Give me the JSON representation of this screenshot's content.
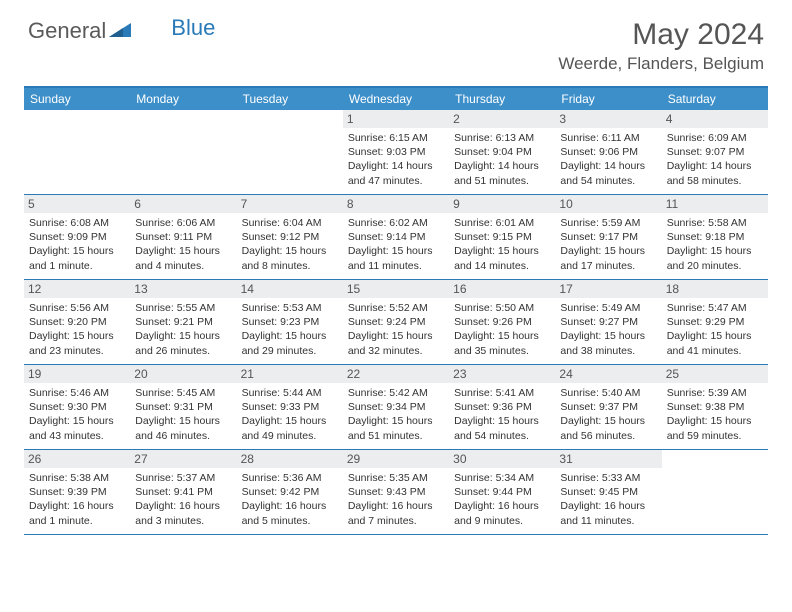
{
  "brand": {
    "part1": "General",
    "part2": "Blue"
  },
  "title": "May 2024",
  "location": "Weerde, Flanders, Belgium",
  "colors": {
    "header_bg": "#3d8fc9",
    "border": "#2a7ab8",
    "daynum_bg": "#ebedef",
    "text": "#333333",
    "title_text": "#555555"
  },
  "day_names": [
    "Sunday",
    "Monday",
    "Tuesday",
    "Wednesday",
    "Thursday",
    "Friday",
    "Saturday"
  ],
  "weeks": [
    [
      {
        "n": "",
        "sr": "",
        "ss": "",
        "dl": ""
      },
      {
        "n": "",
        "sr": "",
        "ss": "",
        "dl": ""
      },
      {
        "n": "",
        "sr": "",
        "ss": "",
        "dl": ""
      },
      {
        "n": "1",
        "sr": "Sunrise: 6:15 AM",
        "ss": "Sunset: 9:03 PM",
        "dl": "Daylight: 14 hours and 47 minutes."
      },
      {
        "n": "2",
        "sr": "Sunrise: 6:13 AM",
        "ss": "Sunset: 9:04 PM",
        "dl": "Daylight: 14 hours and 51 minutes."
      },
      {
        "n": "3",
        "sr": "Sunrise: 6:11 AM",
        "ss": "Sunset: 9:06 PM",
        "dl": "Daylight: 14 hours and 54 minutes."
      },
      {
        "n": "4",
        "sr": "Sunrise: 6:09 AM",
        "ss": "Sunset: 9:07 PM",
        "dl": "Daylight: 14 hours and 58 minutes."
      }
    ],
    [
      {
        "n": "5",
        "sr": "Sunrise: 6:08 AM",
        "ss": "Sunset: 9:09 PM",
        "dl": "Daylight: 15 hours and 1 minute."
      },
      {
        "n": "6",
        "sr": "Sunrise: 6:06 AM",
        "ss": "Sunset: 9:11 PM",
        "dl": "Daylight: 15 hours and 4 minutes."
      },
      {
        "n": "7",
        "sr": "Sunrise: 6:04 AM",
        "ss": "Sunset: 9:12 PM",
        "dl": "Daylight: 15 hours and 8 minutes."
      },
      {
        "n": "8",
        "sr": "Sunrise: 6:02 AM",
        "ss": "Sunset: 9:14 PM",
        "dl": "Daylight: 15 hours and 11 minutes."
      },
      {
        "n": "9",
        "sr": "Sunrise: 6:01 AM",
        "ss": "Sunset: 9:15 PM",
        "dl": "Daylight: 15 hours and 14 minutes."
      },
      {
        "n": "10",
        "sr": "Sunrise: 5:59 AM",
        "ss": "Sunset: 9:17 PM",
        "dl": "Daylight: 15 hours and 17 minutes."
      },
      {
        "n": "11",
        "sr": "Sunrise: 5:58 AM",
        "ss": "Sunset: 9:18 PM",
        "dl": "Daylight: 15 hours and 20 minutes."
      }
    ],
    [
      {
        "n": "12",
        "sr": "Sunrise: 5:56 AM",
        "ss": "Sunset: 9:20 PM",
        "dl": "Daylight: 15 hours and 23 minutes."
      },
      {
        "n": "13",
        "sr": "Sunrise: 5:55 AM",
        "ss": "Sunset: 9:21 PM",
        "dl": "Daylight: 15 hours and 26 minutes."
      },
      {
        "n": "14",
        "sr": "Sunrise: 5:53 AM",
        "ss": "Sunset: 9:23 PM",
        "dl": "Daylight: 15 hours and 29 minutes."
      },
      {
        "n": "15",
        "sr": "Sunrise: 5:52 AM",
        "ss": "Sunset: 9:24 PM",
        "dl": "Daylight: 15 hours and 32 minutes."
      },
      {
        "n": "16",
        "sr": "Sunrise: 5:50 AM",
        "ss": "Sunset: 9:26 PM",
        "dl": "Daylight: 15 hours and 35 minutes."
      },
      {
        "n": "17",
        "sr": "Sunrise: 5:49 AM",
        "ss": "Sunset: 9:27 PM",
        "dl": "Daylight: 15 hours and 38 minutes."
      },
      {
        "n": "18",
        "sr": "Sunrise: 5:47 AM",
        "ss": "Sunset: 9:29 PM",
        "dl": "Daylight: 15 hours and 41 minutes."
      }
    ],
    [
      {
        "n": "19",
        "sr": "Sunrise: 5:46 AM",
        "ss": "Sunset: 9:30 PM",
        "dl": "Daylight: 15 hours and 43 minutes."
      },
      {
        "n": "20",
        "sr": "Sunrise: 5:45 AM",
        "ss": "Sunset: 9:31 PM",
        "dl": "Daylight: 15 hours and 46 minutes."
      },
      {
        "n": "21",
        "sr": "Sunrise: 5:44 AM",
        "ss": "Sunset: 9:33 PM",
        "dl": "Daylight: 15 hours and 49 minutes."
      },
      {
        "n": "22",
        "sr": "Sunrise: 5:42 AM",
        "ss": "Sunset: 9:34 PM",
        "dl": "Daylight: 15 hours and 51 minutes."
      },
      {
        "n": "23",
        "sr": "Sunrise: 5:41 AM",
        "ss": "Sunset: 9:36 PM",
        "dl": "Daylight: 15 hours and 54 minutes."
      },
      {
        "n": "24",
        "sr": "Sunrise: 5:40 AM",
        "ss": "Sunset: 9:37 PM",
        "dl": "Daylight: 15 hours and 56 minutes."
      },
      {
        "n": "25",
        "sr": "Sunrise: 5:39 AM",
        "ss": "Sunset: 9:38 PM",
        "dl": "Daylight: 15 hours and 59 minutes."
      }
    ],
    [
      {
        "n": "26",
        "sr": "Sunrise: 5:38 AM",
        "ss": "Sunset: 9:39 PM",
        "dl": "Daylight: 16 hours and 1 minute."
      },
      {
        "n": "27",
        "sr": "Sunrise: 5:37 AM",
        "ss": "Sunset: 9:41 PM",
        "dl": "Daylight: 16 hours and 3 minutes."
      },
      {
        "n": "28",
        "sr": "Sunrise: 5:36 AM",
        "ss": "Sunset: 9:42 PM",
        "dl": "Daylight: 16 hours and 5 minutes."
      },
      {
        "n": "29",
        "sr": "Sunrise: 5:35 AM",
        "ss": "Sunset: 9:43 PM",
        "dl": "Daylight: 16 hours and 7 minutes."
      },
      {
        "n": "30",
        "sr": "Sunrise: 5:34 AM",
        "ss": "Sunset: 9:44 PM",
        "dl": "Daylight: 16 hours and 9 minutes."
      },
      {
        "n": "31",
        "sr": "Sunrise: 5:33 AM",
        "ss": "Sunset: 9:45 PM",
        "dl": "Daylight: 16 hours and 11 minutes."
      },
      {
        "n": "",
        "sr": "",
        "ss": "",
        "dl": ""
      }
    ]
  ]
}
